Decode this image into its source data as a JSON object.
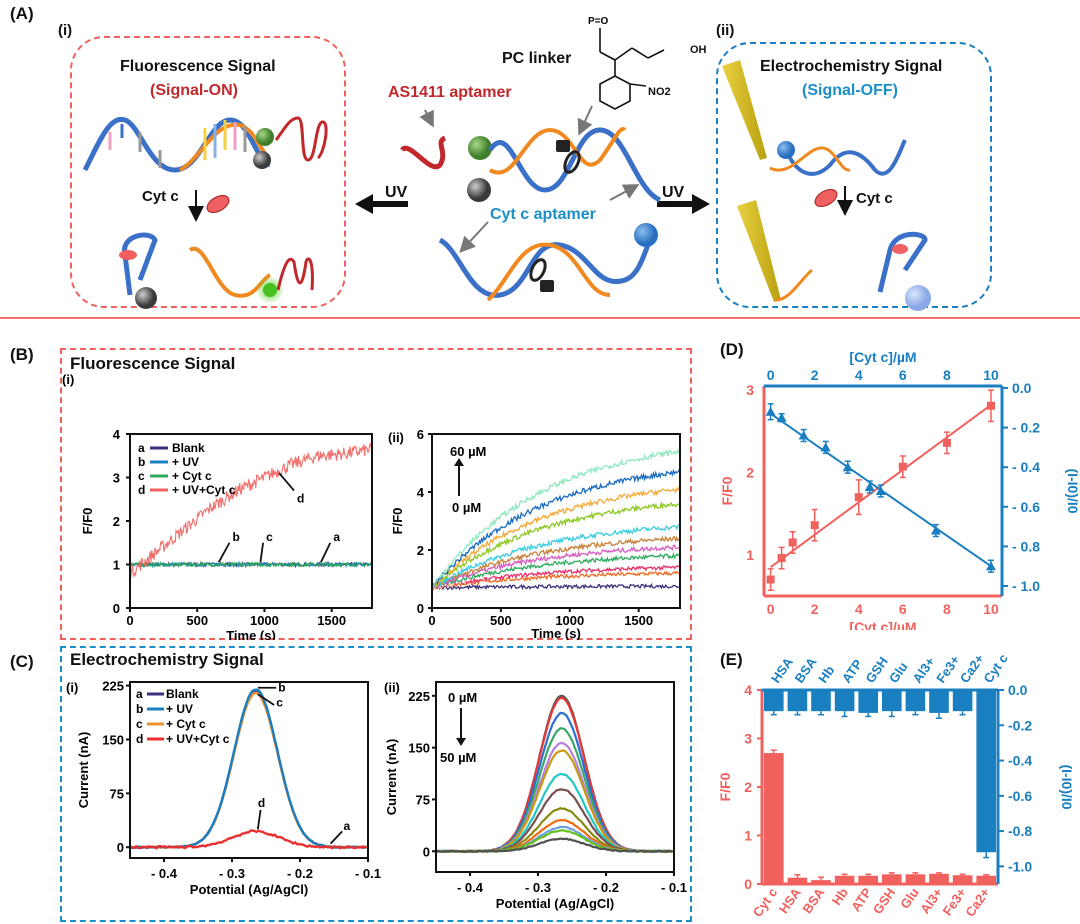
{
  "colors": {
    "red": "#f0605d",
    "blue": "#1a7fc0",
    "darkred": "#c0282c",
    "black": "#111111"
  },
  "panel_A": {
    "label": "(A)",
    "sub_i": "(i)",
    "sub_ii": "(ii)",
    "left_box": {
      "title": "Fluorescence Signal",
      "subtitle": "(Signal-ON)",
      "step_label": "Cyt c"
    },
    "right_box": {
      "title": "Electrochemistry Signal",
      "subtitle": "(Signal-OFF)",
      "step_label": "Cyt c"
    },
    "center": {
      "pc_linker": "PC linker",
      "as1411": "AS1411 aptamer",
      "cytc_aptamer": "Cyt c  aptamer",
      "uv_left": "UV",
      "uv_right": "UV",
      "no2": "NO2",
      "oh": "OH"
    }
  },
  "panel_B": {
    "label": "(B)",
    "box_title": "Fluorescence Signal"
  },
  "panel_C": {
    "label": "(C)",
    "box_title": "Electrochemistry Signal"
  },
  "panel_D": {
    "label": "(D)"
  },
  "panel_E": {
    "label": "(E)"
  },
  "chart_data": [
    {
      "id": "B-i",
      "type": "line",
      "sublabel": "(i)",
      "xlabel": "Time (s)",
      "ylabel": "F/F0",
      "xlim": [
        0,
        1800
      ],
      "ylim": [
        0,
        4
      ],
      "xticks": [
        0,
        500,
        1000,
        1500
      ],
      "yticks": [
        0,
        1,
        2,
        3,
        4
      ],
      "legend": [
        {
          "key": "a",
          "name": "Blank",
          "color": "#3a2f7a"
        },
        {
          "key": "b",
          "name": "+ UV",
          "color": "#1a7fc0"
        },
        {
          "key": "c",
          "name": "+ Cyt c",
          "color": "#2eaa5c"
        },
        {
          "key": "d",
          "name": "+ UV+Cyt c",
          "color": "#f0605d"
        }
      ],
      "annotations": [
        "a",
        "b",
        "c",
        "d"
      ],
      "series": [
        {
          "name": "Blank",
          "x": [
            0,
            300,
            600,
            900,
            1200,
            1500,
            1800
          ],
          "y": [
            1.0,
            1.0,
            1.0,
            1.0,
            1.0,
            1.0,
            1.0
          ]
        },
        {
          "name": "+ UV",
          "x": [
            0,
            300,
            600,
            900,
            1200,
            1500,
            1800
          ],
          "y": [
            1.0,
            1.0,
            1.0,
            1.0,
            1.0,
            1.0,
            1.0
          ]
        },
        {
          "name": "+ Cyt c",
          "x": [
            0,
            300,
            600,
            900,
            1200,
            1500,
            1800
          ],
          "y": [
            1.0,
            1.0,
            1.0,
            1.0,
            1.0,
            1.0,
            1.0
          ]
        },
        {
          "name": "+ UV+Cyt c",
          "x": [
            0,
            200,
            400,
            600,
            800,
            1000,
            1200,
            1400,
            1600,
            1800
          ],
          "y": [
            0.8,
            1.3,
            1.8,
            2.3,
            2.7,
            3.0,
            3.3,
            3.5,
            3.55,
            3.65
          ]
        }
      ]
    },
    {
      "id": "B-ii",
      "type": "line",
      "sublabel": "(ii)",
      "xlabel": "Time (s)",
      "ylabel": "F/F0",
      "xlim": [
        0,
        1800
      ],
      "ylim": [
        0,
        6
      ],
      "xticks": [
        0,
        500,
        1000,
        1500
      ],
      "yticks": [
        0,
        2,
        4,
        6
      ],
      "annotation_top": "60 µM",
      "annotation_bottom": "0 µM",
      "final_values": [
        0.75,
        1.2,
        1.4,
        1.6,
        1.8,
        2.1,
        2.4,
        2.8,
        3.6,
        4.1,
        4.7,
        5.4
      ],
      "colors": [
        "#3a2f7a",
        "#f06a1e",
        "#e8306a",
        "#ffffff",
        "#2eaa5c",
        "#d85cc0",
        "#c8803a",
        "#3ccce0",
        "#8cc820",
        "#f5a83a",
        "#1a6ac0",
        "#90e8c0"
      ]
    },
    {
      "id": "C-i",
      "type": "line",
      "sublabel": "(i)",
      "xlabel": "Potential (Ag/AgCl)",
      "ylabel": "Current (nA)",
      "xlim": [
        -0.45,
        -0.1
      ],
      "ylim": [
        -15,
        230
      ],
      "xticks": [
        "- 0.4",
        "- 0.3",
        "- 0.2",
        "- 0.1"
      ],
      "yticks": [
        0,
        75,
        150,
        225
      ],
      "legend": [
        {
          "key": "a",
          "name": "Blank",
          "color": "#3a2f7a"
        },
        {
          "key": "b",
          "name": "+ UV",
          "color": "#1a7fc0"
        },
        {
          "key": "c",
          "name": "+ Cyt c",
          "color": "#f09030"
        },
        {
          "key": "d",
          "name": "+ UV+Cyt c",
          "color": "#e83030"
        }
      ],
      "annotations": [
        "a",
        "b",
        "c",
        "d"
      ],
      "peak_potential": -0.265,
      "peaks": [
        {
          "name": "Blank",
          "value": 218
        },
        {
          "name": "+ UV",
          "value": 220
        },
        {
          "name": "+ Cyt c",
          "value": 215
        },
        {
          "name": "+ UV+Cyt c",
          "value": 22
        }
      ]
    },
    {
      "id": "C-ii",
      "type": "line",
      "sublabel": "(ii)",
      "xlabel": "Potential (Ag/AgCl)",
      "ylabel": "Current (nA)",
      "xlim": [
        -0.45,
        -0.1
      ],
      "ylim": [
        -30,
        245
      ],
      "xticks": [
        "- 0.4",
        "- 0.3",
        "- 0.2",
        "- 0.1"
      ],
      "yticks": [
        0,
        75,
        150,
        225
      ],
      "annotation_top": "0 µM",
      "annotation_bottom": "50 µM",
      "peak_potential": -0.265,
      "peaks": [
        225,
        222,
        200,
        178,
        157,
        146,
        112,
        90,
        62,
        45,
        35,
        30,
        18
      ],
      "colors": [
        "#555555",
        "#e83838",
        "#2a70d0",
        "#3aa868",
        "#b880e0",
        "#c89a10",
        "#20c8c8",
        "#7a5050",
        "#8a8a10",
        "#f06a10",
        "#70a0e0",
        "#60c020",
        "#505050"
      ]
    },
    {
      "id": "D",
      "type": "scatter",
      "top_xlabel": "[Cyt c]/µM",
      "bottom_xlabel": "[Cyt c]/µM",
      "left_ylabel": "F/F0",
      "right_ylabel": "(I-I0)/I0",
      "xlim": [
        -0.3,
        10.5
      ],
      "xticks": [
        0,
        2,
        4,
        6,
        8,
        10
      ],
      "left_ylim": [
        0.5,
        3.05
      ],
      "left_yticks": [
        1,
        2,
        3
      ],
      "right_ylim": [
        -1.0,
        0.0
      ],
      "right_yticks": [
        "0.0",
        "- 0.2",
        "- 0.4",
        "- 0.6",
        "- 0.8",
        "- 1.0"
      ],
      "series": [
        {
          "name": "F/F0",
          "axis": "left",
          "color": "#f0605d",
          "x": [
            0,
            0.5,
            1,
            2,
            4,
            6,
            8,
            10
          ],
          "y": [
            0.7,
            0.96,
            1.15,
            1.36,
            1.7,
            2.07,
            2.36,
            2.81
          ],
          "err": [
            0.13,
            0.13,
            0.13,
            0.19,
            0.21,
            0.13,
            0.13,
            0.19
          ],
          "fit": [
            [
              0,
              0.85
            ],
            [
              10,
              2.82
            ]
          ]
        },
        {
          "name": "(I-I0)/I0",
          "axis": "right",
          "color": "#1a7fc0",
          "x": [
            0,
            0.5,
            1.5,
            2.5,
            3.5,
            4.5,
            5,
            7.5,
            10
          ],
          "y": [
            -0.12,
            -0.15,
            -0.24,
            -0.3,
            -0.4,
            -0.5,
            -0.52,
            -0.72,
            -0.9
          ],
          "err": [
            0.04,
            0.02,
            0.03,
            0.03,
            0.03,
            0.03,
            0.03,
            0.03,
            0.03
          ],
          "fit": [
            [
              0,
              -0.13
            ],
            [
              10,
              -0.9
            ]
          ]
        }
      ]
    },
    {
      "id": "E",
      "type": "bar",
      "left_ylabel": "F/F0",
      "right_ylabel": "(I-I0)/I0",
      "left_ylim": [
        0,
        4
      ],
      "left_yticks": [
        0,
        1,
        2,
        3,
        4
      ],
      "right_ylim": [
        -1.1,
        0.0
      ],
      "right_yticks": [
        "0.0",
        "-0.2",
        "-0.4",
        "-0.6",
        "-0.8",
        "-1.0"
      ],
      "bottom_categories": [
        "Cyt c",
        "HSA",
        "BSA",
        "Hb",
        "ATP",
        "GSH",
        "Glu",
        "Al3+",
        "Fe3+",
        "Ca2+"
      ],
      "bottom_values": [
        2.7,
        0.13,
        0.08,
        0.17,
        0.17,
        0.2,
        0.2,
        0.21,
        0.18,
        0.17
      ],
      "bottom_err": [
        0.06,
        0.06,
        0.06,
        0.03,
        0.03,
        0.03,
        0.03,
        0.02,
        0.02,
        0.02
      ],
      "top_categories": [
        "HSA",
        "BSA",
        "Hb",
        "ATP",
        "GSH",
        "Glu",
        "Al3+",
        "Fe3+",
        "Ca2+",
        "Cyt c"
      ],
      "top_values": [
        -0.12,
        -0.12,
        -0.12,
        -0.12,
        -0.13,
        -0.12,
        -0.12,
        -0.13,
        -0.12,
        -0.92
      ],
      "top_err": [
        0.02,
        0.02,
        0.02,
        0.03,
        0.02,
        0.03,
        0.02,
        0.03,
        0.02,
        0.03
      ]
    }
  ]
}
